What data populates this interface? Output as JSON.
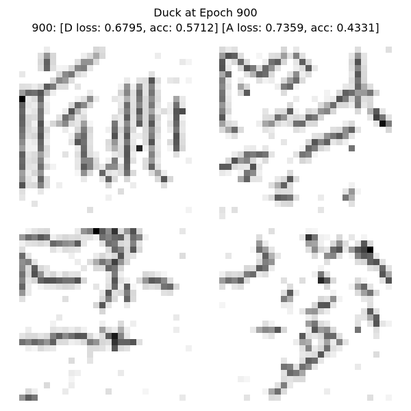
{
  "figure": {
    "title": "Duck at Epoch 900",
    "subtitle": "900: [D loss: 0.6795, acc: 0.5712]  [A loss: 0.7359, acc: 0.4331]"
  },
  "panels": [
    {
      "id": "sample-1"
    },
    {
      "id": "sample-2"
    },
    {
      "id": "sample-3"
    },
    {
      "id": "sample-4"
    }
  ],
  "colors": {
    "background": "#ffffff",
    "ink": "#000000"
  }
}
